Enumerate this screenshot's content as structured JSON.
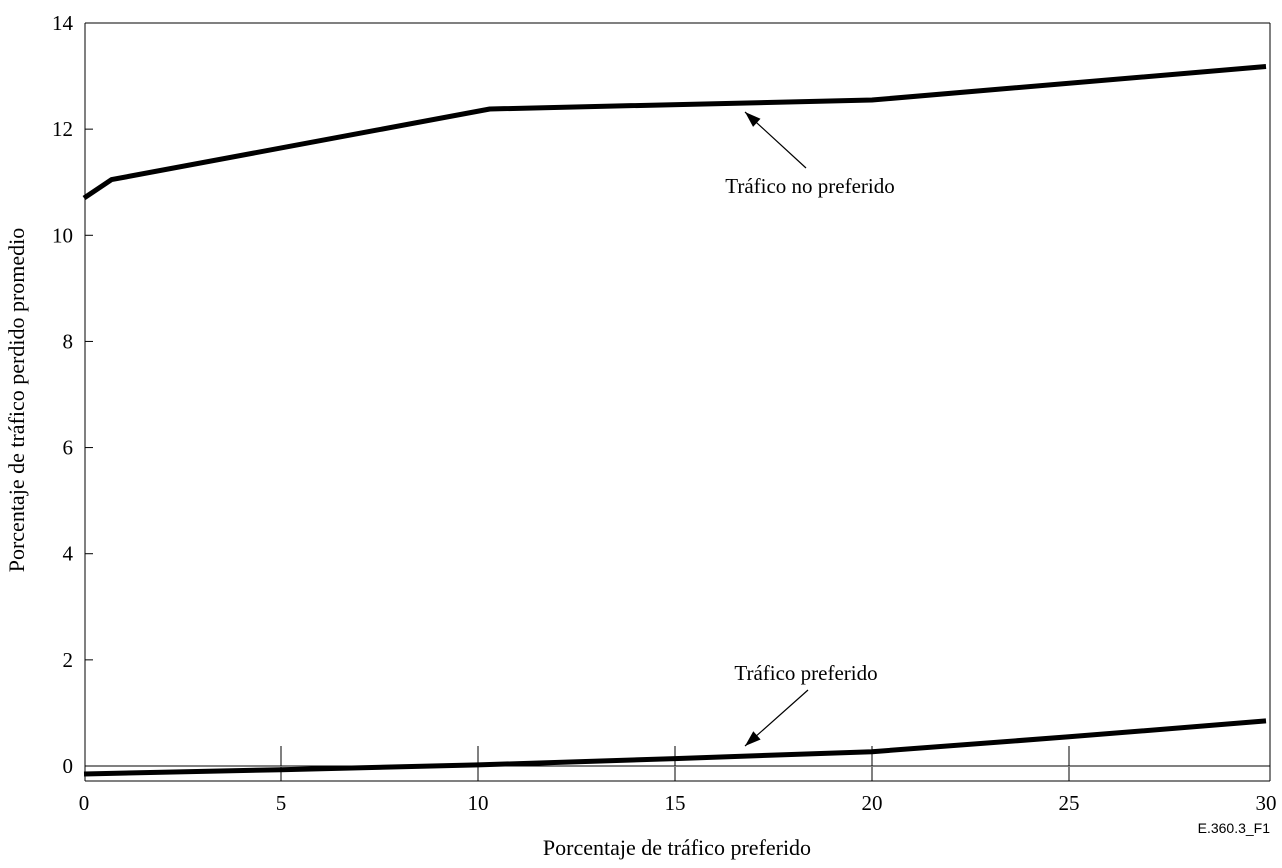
{
  "chart_data": {
    "type": "line",
    "xlabel": "Porcentaje de tráfico preferido",
    "ylabel": "Porcentaje de tráfico perdido promedio",
    "xlim": [
      0,
      30
    ],
    "ylim": [
      0,
      14
    ],
    "x_ticks": [
      0,
      5,
      10,
      15,
      20,
      25,
      30
    ],
    "y_ticks": [
      0,
      2,
      4,
      6,
      8,
      10,
      12,
      14
    ],
    "grid": false,
    "series": [
      {
        "name": "Tráfico no preferido",
        "x": [
          0,
          0.7,
          10.3,
          20,
          30
        ],
        "y": [
          10.7,
          11.05,
          12.38,
          12.55,
          13.18
        ]
      },
      {
        "name": "Tráfico preferido",
        "x": [
          0,
          5,
          10,
          15,
          20,
          25,
          30
        ],
        "y": [
          -0.15,
          -0.07,
          0.02,
          0.14,
          0.27,
          0.55,
          0.85
        ]
      }
    ],
    "figure_id": "E.360.3_F1"
  }
}
